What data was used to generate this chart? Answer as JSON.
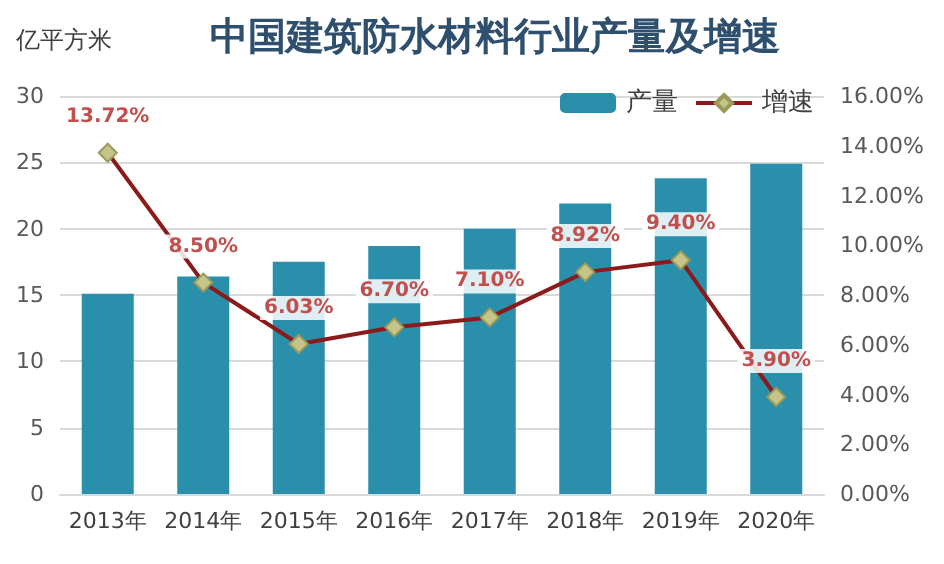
{
  "chart_data": {
    "type": "bar",
    "title": "中国建筑防水材料行业产量及增速",
    "ylabel": "亿平方米",
    "categories": [
      "2013年",
      "2014年",
      "2015年",
      "2016年",
      "2017年",
      "2018年",
      "2019年",
      "2020年"
    ],
    "series": [
      {
        "name": "产量",
        "color": "#2a8fab",
        "values": [
          15.1,
          16.4,
          17.5,
          18.7,
          20.0,
          21.9,
          23.8,
          24.9
        ]
      },
      {
        "name": "增速",
        "type": "line",
        "axis": "y2",
        "color": "#8b1a1a",
        "marker": "diamond",
        "values": [
          13.72,
          8.5,
          6.03,
          6.7,
          7.1,
          8.92,
          9.4,
          3.9
        ],
        "value_labels": [
          "13.72%",
          "8.50%",
          "6.03%",
          "6.70%",
          "7.10%",
          "8.92%",
          "9.40%",
          "3.90%"
        ]
      }
    ],
    "ylim": [
      0,
      30
    ],
    "yticks": [
      0,
      5,
      10,
      15,
      20,
      25,
      30
    ],
    "y2lim": [
      0,
      16
    ],
    "y2ticks": [
      {
        "value": 0,
        "label": "0.00%"
      },
      {
        "value": 2,
        "label": "2.00%"
      },
      {
        "value": 4,
        "label": "4.00%"
      },
      {
        "value": 6,
        "label": "6.00%"
      },
      {
        "value": 8,
        "label": "8.00%"
      },
      {
        "value": 10,
        "label": "10.00%"
      },
      {
        "value": 12,
        "label": "12.00%"
      },
      {
        "value": 14,
        "label": "14.00%"
      },
      {
        "value": 16,
        "label": "16.00%"
      }
    ],
    "grid": "y",
    "legend": "top right"
  }
}
